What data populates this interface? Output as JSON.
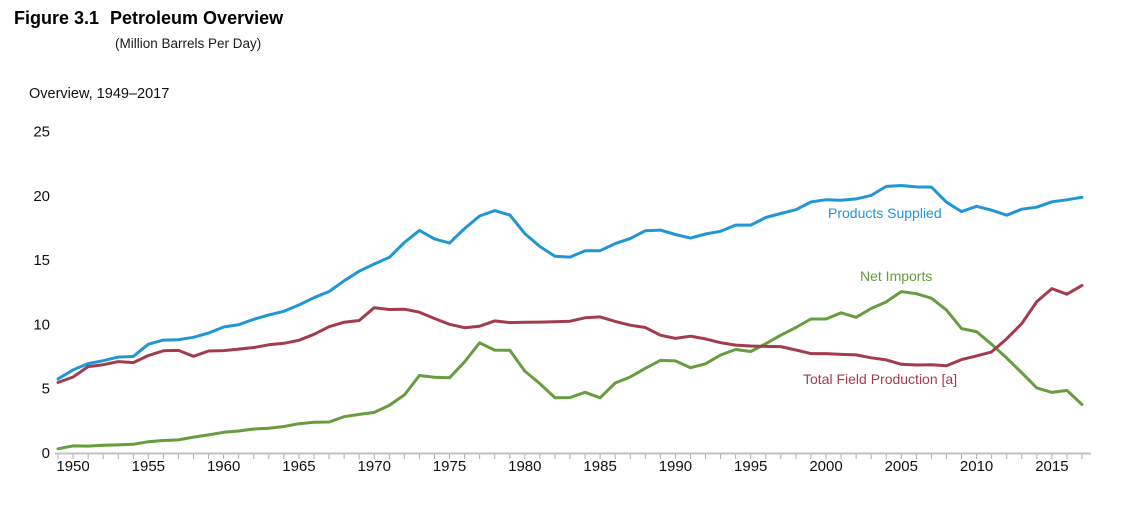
{
  "header": {
    "figure_label": "Figure 3.1",
    "title": "Petroleum Overview",
    "subtitle": "(Million Barrels Per Day)",
    "section_label": "Overview, 1949–2017"
  },
  "colors": {
    "products_supplied": "#2196d4",
    "net_imports": "#679c3f",
    "total_field_production": "#a23c4d",
    "axis_line": "#c2c2c2",
    "tick": "#adadad",
    "text": "#111111"
  },
  "chart_data": {
    "type": "line",
    "title": "Overview, 1949–2017",
    "xlabel": "",
    "ylabel": "Million Barrels Per Day",
    "xlim": [
      1949,
      2017
    ],
    "ylim": [
      0,
      25
    ],
    "grid": false,
    "legend_position": "inline-annotations",
    "y_ticks": [
      0,
      5,
      10,
      15,
      20,
      25
    ],
    "x_tick_labels": [
      1950,
      1955,
      1960,
      1965,
      1970,
      1975,
      1980,
      1985,
      1990,
      1995,
      2000,
      2005,
      2010,
      2015
    ],
    "x": [
      1949,
      1950,
      1951,
      1952,
      1953,
      1954,
      1955,
      1956,
      1957,
      1958,
      1959,
      1960,
      1961,
      1962,
      1963,
      1964,
      1965,
      1966,
      1967,
      1968,
      1969,
      1970,
      1971,
      1972,
      1973,
      1974,
      1975,
      1976,
      1977,
      1978,
      1979,
      1980,
      1981,
      1982,
      1983,
      1984,
      1985,
      1986,
      1987,
      1988,
      1989,
      1990,
      1991,
      1992,
      1993,
      1994,
      1995,
      1996,
      1997,
      1998,
      1999,
      2000,
      2001,
      2002,
      2003,
      2004,
      2005,
      2006,
      2007,
      2008,
      2009,
      2010,
      2011,
      2012,
      2013,
      2014,
      2015,
      2016,
      2017
    ],
    "series": [
      {
        "name": "Products Supplied",
        "color": "#2196d4",
        "values": [
          5.76,
          6.46,
          6.95,
          7.18,
          7.46,
          7.51,
          8.46,
          8.78,
          8.81,
          9.0,
          9.33,
          9.8,
          9.98,
          10.4,
          10.74,
          11.02,
          11.51,
          12.08,
          12.56,
          13.39,
          14.14,
          14.7,
          15.21,
          16.37,
          17.31,
          16.65,
          16.32,
          17.46,
          18.43,
          18.85,
          18.51,
          17.06,
          16.06,
          15.3,
          15.23,
          15.73,
          15.73,
          16.28,
          16.67,
          17.28,
          17.33,
          16.99,
          16.71,
          17.03,
          17.24,
          17.72,
          17.72,
          18.31,
          18.62,
          18.92,
          19.52,
          19.7,
          19.65,
          19.76,
          20.03,
          20.73,
          20.8,
          20.69,
          20.68,
          19.5,
          18.77,
          19.18,
          18.88,
          18.49,
          18.96,
          19.11,
          19.53,
          19.69,
          19.88
        ]
      },
      {
        "name": "Net Imports",
        "color": "#679c3f",
        "values": [
          0.33,
          0.55,
          0.54,
          0.6,
          0.63,
          0.68,
          0.88,
          0.97,
          1.02,
          1.24,
          1.41,
          1.61,
          1.71,
          1.87,
          1.93,
          2.06,
          2.28,
          2.39,
          2.41,
          2.82,
          3.0,
          3.16,
          3.7,
          4.52,
          6.03,
          5.89,
          5.85,
          7.09,
          8.57,
          8.0,
          7.99,
          6.37,
          5.4,
          4.3,
          4.31,
          4.72,
          4.29,
          5.44,
          5.91,
          6.59,
          7.2,
          7.16,
          6.63,
          6.94,
          7.62,
          8.05,
          7.89,
          8.5,
          9.16,
          9.76,
          10.42,
          10.42,
          10.9,
          10.55,
          11.24,
          11.75,
          12.55,
          12.39,
          12.04,
          11.11,
          9.67,
          9.44,
          8.45,
          7.39,
          6.24,
          5.06,
          4.71,
          4.87,
          3.77
        ]
      },
      {
        "name": "Total Field Production [a]",
        "color": "#a23c4d",
        "values": [
          5.48,
          5.91,
          6.72,
          6.87,
          7.11,
          7.03,
          7.58,
          7.95,
          7.98,
          7.52,
          7.93,
          7.96,
          8.08,
          8.2,
          8.41,
          8.53,
          8.76,
          9.23,
          9.82,
          10.17,
          10.3,
          11.3,
          11.16,
          11.18,
          10.95,
          10.46,
          10.01,
          9.74,
          9.86,
          10.27,
          10.14,
          10.17,
          10.18,
          10.2,
          10.25,
          10.51,
          10.58,
          10.23,
          9.94,
          9.76,
          9.16,
          8.91,
          9.08,
          8.87,
          8.58,
          8.39,
          8.32,
          8.29,
          8.27,
          8.01,
          7.73,
          7.73,
          7.67,
          7.63,
          7.4,
          7.24,
          6.9,
          6.84,
          6.86,
          6.78,
          7.26,
          7.55,
          7.86,
          8.89,
          10.07,
          11.77,
          12.78,
          12.35,
          13.03
        ]
      }
    ]
  }
}
